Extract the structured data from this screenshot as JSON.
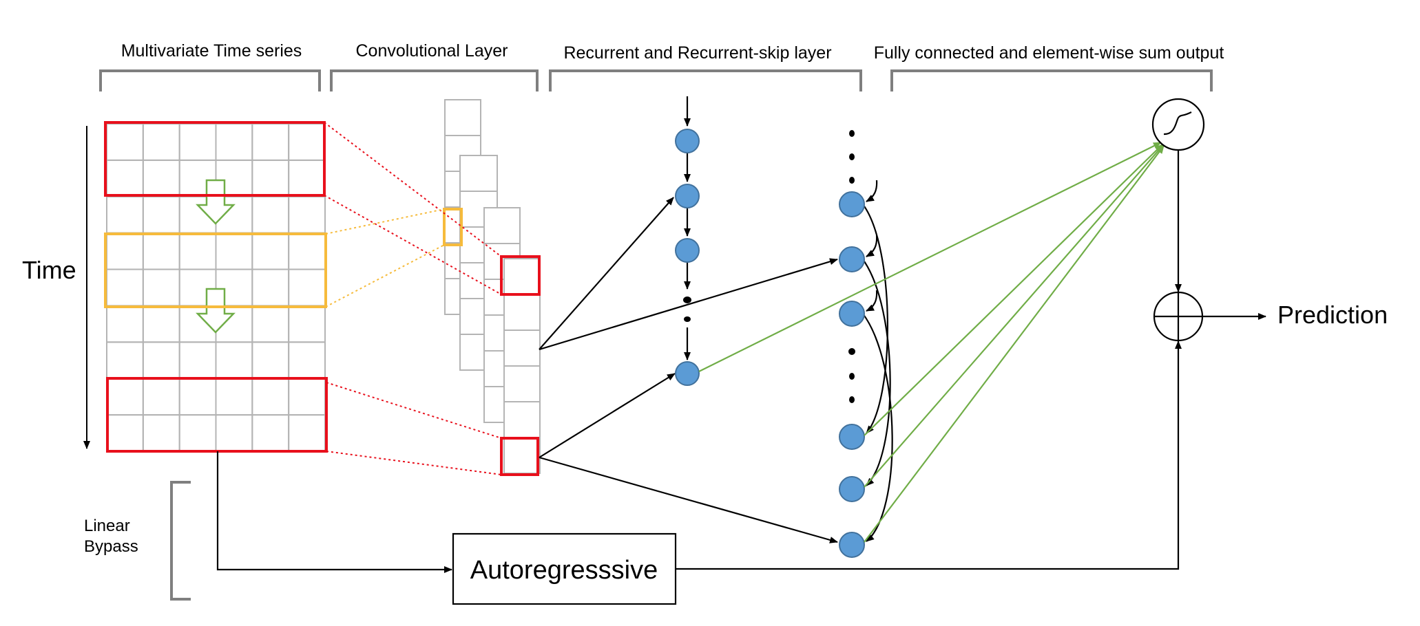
{
  "headers": {
    "multivariate": "Multivariate Time series",
    "convolutional": "Convolutional Layer",
    "recurrent": "Recurrent and Recurrent-skip layer",
    "fully_connected": "Fully connected and element-wise sum output"
  },
  "labels": {
    "time": "Time",
    "linear_bypass_line1": "Linear",
    "linear_bypass_line2": "Bypass",
    "autoregressive": "Autoregresssive",
    "prediction": "Prediction"
  },
  "icons": {
    "activation": "sigmoid-icon",
    "sum": "element-wise-sum-icon"
  },
  "colors": {
    "window_red": "#e8101c",
    "window_orange": "#f6bb3c",
    "flow_green": "#70ad47",
    "node_blue": "#5b9bd5",
    "node_border": "#41719c",
    "grid_gray": "#b4b4b4",
    "bracket_gray": "#7f7f7f"
  }
}
